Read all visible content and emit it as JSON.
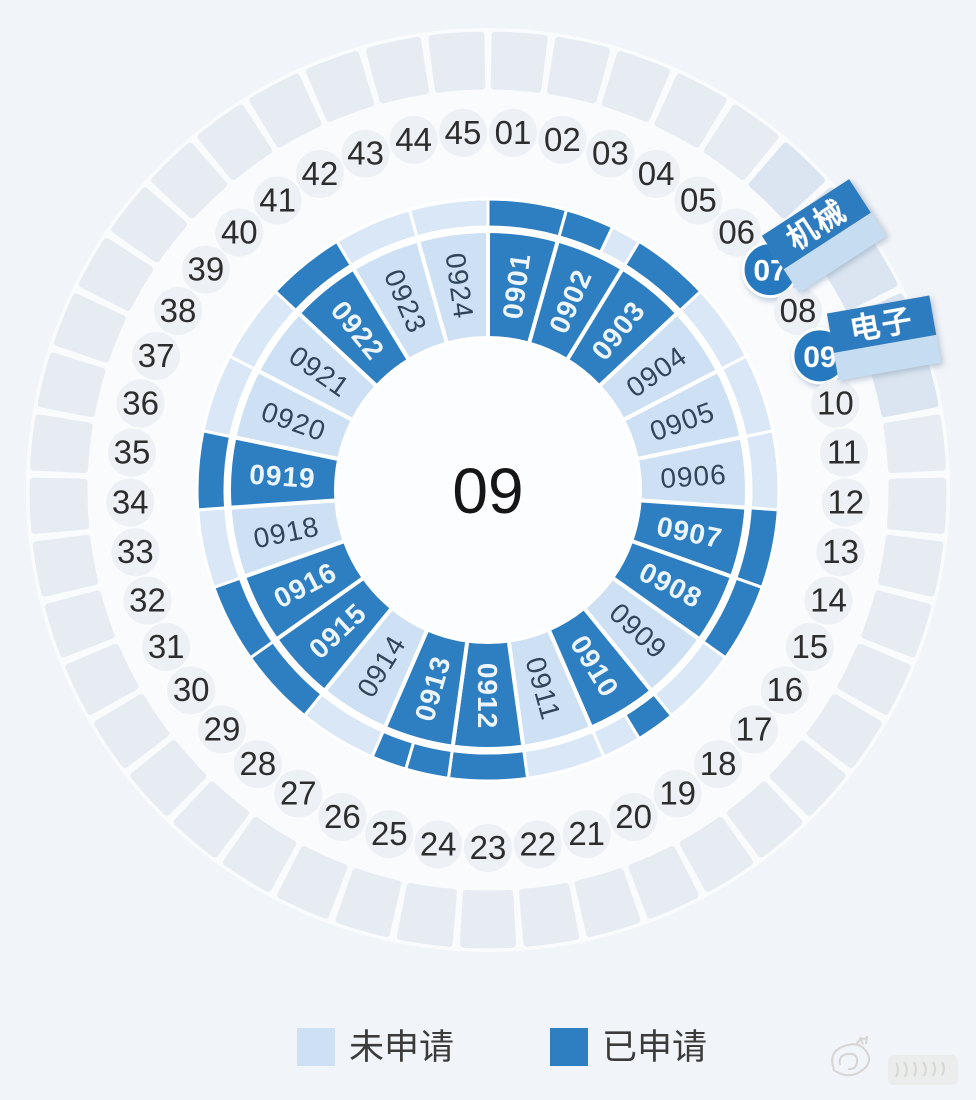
{
  "chart_data": {
    "type": "sunburst",
    "center_label": "09",
    "legend": [
      {
        "label": "未申请",
        "key": "not_applied"
      },
      {
        "label": "已申请",
        "key": "applied"
      }
    ],
    "palette": {
      "applied": "#2e7ec2",
      "not_applied": "#cee1f4",
      "outer_not_applied": "#d9e7f6",
      "category_wedge": "#e7ecf3",
      "category_wedge_accent": "#dbe5f1",
      "category_circle": "#edf0f5",
      "highlight_circle": "#2779bf",
      "tag_dark": "#2d7cc0",
      "tag_light": "#c6dcf0"
    },
    "inner_segments": [
      {
        "code": "0901",
        "status": "applied"
      },
      {
        "code": "0902",
        "status": "applied",
        "outer": [
          {
            "status": "applied",
            "frac": 0.62
          },
          {
            "status": "not_applied",
            "frac": 0.38
          }
        ]
      },
      {
        "code": "0903",
        "status": "applied"
      },
      {
        "code": "0904",
        "status": "not_applied"
      },
      {
        "code": "0905",
        "status": "not_applied"
      },
      {
        "code": "0906",
        "status": "not_applied"
      },
      {
        "code": "0907",
        "status": "applied"
      },
      {
        "code": "0908",
        "status": "applied"
      },
      {
        "code": "0909",
        "status": "not_applied"
      },
      {
        "code": "0910",
        "status": "applied",
        "outer": [
          {
            "status": "applied",
            "frac": 0.5
          },
          {
            "status": "not_applied",
            "frac": 0.5
          }
        ]
      },
      {
        "code": "0911",
        "status": "not_applied"
      },
      {
        "code": "0912",
        "status": "applied"
      },
      {
        "code": "0913",
        "status": "applied",
        "outer": [
          {
            "status": "applied",
            "frac": 0.55
          },
          {
            "status": "applied",
            "frac": 0.45
          }
        ]
      },
      {
        "code": "0914",
        "status": "not_applied"
      },
      {
        "code": "0915",
        "status": "applied"
      },
      {
        "code": "0916",
        "status": "applied"
      },
      {
        "code": "0918",
        "status": "not_applied"
      },
      {
        "code": "0919",
        "status": "applied"
      },
      {
        "code": "0920",
        "status": "not_applied"
      },
      {
        "code": "0921",
        "status": "not_applied"
      },
      {
        "code": "0922",
        "status": "applied"
      },
      {
        "code": "0923",
        "status": "not_applied"
      },
      {
        "code": "0924",
        "status": "not_applied"
      }
    ],
    "outer_categories": [
      "01",
      "02",
      "03",
      "04",
      "05",
      "06",
      "07",
      "08",
      "09",
      "10",
      "11",
      "12",
      "13",
      "14",
      "15",
      "16",
      "17",
      "18",
      "19",
      "20",
      "21",
      "22",
      "23",
      "24",
      "25",
      "26",
      "27",
      "28",
      "29",
      "30",
      "31",
      "32",
      "33",
      "34",
      "35",
      "36",
      "37",
      "38",
      "39",
      "40",
      "41",
      "42",
      "43",
      "44",
      "45"
    ],
    "highlighted_categories": [
      {
        "code": "07",
        "tag": "机械"
      },
      {
        "code": "09",
        "tag": "电子"
      }
    ]
  }
}
